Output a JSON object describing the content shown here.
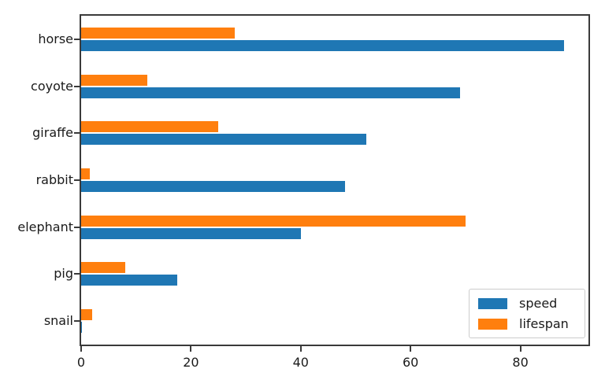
{
  "figure": {
    "background": "#ffffff",
    "spine_color": "#3a3a3a",
    "text_color": "#1a1a1a"
  },
  "chart_data": {
    "type": "bar",
    "orientation": "horizontal",
    "title": "",
    "xlabel": "",
    "ylabel": "",
    "grid": false,
    "categories": [
      "horse",
      "coyote",
      "giraffe",
      "rabbit",
      "elephant",
      "pig",
      "snail"
    ],
    "series": [
      {
        "name": "speed",
        "color": "#1f77b4",
        "values": [
          88,
          69,
          52,
          48,
          40,
          17.5,
          0.1
        ]
      },
      {
        "name": "lifespan",
        "color": "#ff7f0e",
        "values": [
          28,
          12,
          25,
          1.5,
          70,
          8,
          2
        ]
      }
    ],
    "x_ticks": [
      0,
      20,
      40,
      60,
      80
    ],
    "xlim": [
      0,
      92.4
    ],
    "legend_position": "lower right"
  },
  "legend": {
    "items": [
      {
        "label": "speed",
        "color": "#1f77b4"
      },
      {
        "label": "lifespan",
        "color": "#ff7f0e"
      }
    ]
  }
}
